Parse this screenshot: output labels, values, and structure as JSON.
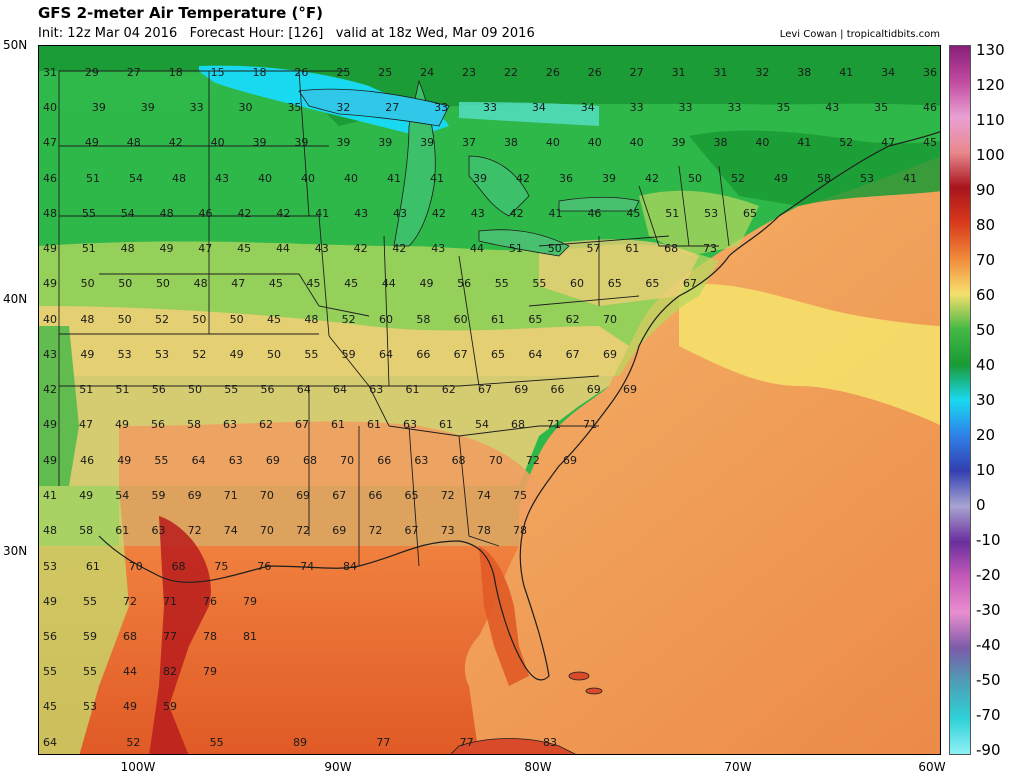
{
  "header": {
    "title": "GFS 2-meter Air Temperature (°F)",
    "init": "Init: 12z Mar 04 2016",
    "forecast_hour": "Forecast Hour: [126]",
    "valid": "valid at 18z Wed, Mar 09 2016",
    "credit": "Levi Cowan | tropicaltidbits.com"
  },
  "axes": {
    "lat_labels": [
      "50N",
      "40N",
      "30N"
    ],
    "lon_labels": [
      "100W",
      "90W",
      "80W",
      "70W",
      "60W"
    ]
  },
  "colorbar": {
    "unit": "°F",
    "ticks": [
      "130",
      "120",
      "110",
      "100",
      "90",
      "80",
      "70",
      "60",
      "50",
      "40",
      "30",
      "20",
      "10",
      "0",
      "-10",
      "-20",
      "-30",
      "-40",
      "-50",
      "-70",
      "-90"
    ],
    "colors": [
      "#8a1f7a",
      "#c04aa0",
      "#e9a0d4",
      "#e8898e",
      "#a8141c",
      "#d83a1c",
      "#f08a3a",
      "#f7e06e",
      "#45b845",
      "#1a9a35",
      "#19d9f0",
      "#2f80e8",
      "#3240b0",
      "#a9a3d3",
      "#6a2f9c",
      "#c45ab8",
      "#e98ed0",
      "#7d5aa8",
      "#4ca0b8",
      "#2fd0d8",
      "#8ff2f5"
    ]
  },
  "map_text": {
    "lake_superior": "",
    "notes": ""
  },
  "temperature_labels": [
    [
      "31",
      "29",
      "27",
      "18",
      "15",
      "18",
      "26",
      "25",
      "25",
      "24",
      "23",
      "22",
      "26",
      "26",
      "27",
      "31",
      "31",
      "32",
      "38",
      "41",
      "34",
      "36"
    ],
    [
      "40",
      "39",
      "39",
      "33",
      "30",
      "35",
      "32",
      "27",
      "33",
      "33",
      "34",
      "34",
      "33",
      "33",
      "33",
      "35",
      "43",
      "35",
      "46"
    ],
    [
      "47",
      "49",
      "48",
      "42",
      "40",
      "39",
      "39",
      "39",
      "39",
      "39",
      "37",
      "38",
      "40",
      "40",
      "40",
      "39",
      "38",
      "40",
      "41",
      "52",
      "47",
      "45"
    ],
    [
      "46",
      "51",
      "54",
      "48",
      "43",
      "40",
      "40",
      "40",
      "41",
      "41",
      "39",
      "42",
      "36",
      "39",
      "42",
      "50",
      "52",
      "49",
      "58",
      "53",
      "41"
    ],
    [
      "48",
      "55",
      "54",
      "48",
      "46",
      "42",
      "42",
      "41",
      "43",
      "43",
      "42",
      "43",
      "42",
      "41",
      "46",
      "45",
      "51",
      "53",
      "65"
    ],
    [
      "49",
      "51",
      "48",
      "49",
      "47",
      "45",
      "44",
      "43",
      "42",
      "42",
      "43",
      "44",
      "51",
      "50",
      "57",
      "61",
      "68",
      "73"
    ],
    [
      "49",
      "50",
      "50",
      "50",
      "48",
      "47",
      "45",
      "45",
      "45",
      "44",
      "49",
      "56",
      "55",
      "55",
      "60",
      "65",
      "65",
      "67"
    ],
    [
      "40",
      "48",
      "50",
      "52",
      "50",
      "50",
      "45",
      "48",
      "52",
      "60",
      "58",
      "60",
      "61",
      "65",
      "62",
      "70"
    ],
    [
      "43",
      "49",
      "53",
      "53",
      "52",
      "49",
      "50",
      "55",
      "59",
      "64",
      "66",
      "67",
      "65",
      "64",
      "67",
      "69"
    ],
    [
      "42",
      "51",
      "51",
      "56",
      "50",
      "55",
      "56",
      "64",
      "64",
      "63",
      "61",
      "62",
      "67",
      "69",
      "66",
      "69",
      "69"
    ],
    [
      "49",
      "47",
      "49",
      "56",
      "58",
      "63",
      "62",
      "67",
      "61",
      "61",
      "63",
      "61",
      "54",
      "68",
      "71",
      "71"
    ],
    [
      "49",
      "46",
      "49",
      "55",
      "64",
      "63",
      "69",
      "68",
      "70",
      "66",
      "63",
      "68",
      "70",
      "72",
      "69"
    ],
    [
      "41",
      "49",
      "54",
      "59",
      "69",
      "71",
      "70",
      "69",
      "67",
      "66",
      "65",
      "72",
      "74",
      "75"
    ],
    [
      "48",
      "58",
      "61",
      "63",
      "72",
      "74",
      "70",
      "72",
      "69",
      "72",
      "67",
      "73",
      "78",
      "78"
    ],
    [
      "53",
      "61",
      "70",
      "68",
      "75",
      "76",
      "74",
      "84"
    ],
    [
      "49",
      "55",
      "72",
      "71",
      "76",
      "79"
    ],
    [
      "56",
      "59",
      "68",
      "77",
      "78",
      "81"
    ],
    [
      "55",
      "55",
      "44",
      "82",
      "79"
    ],
    [
      "45",
      "53",
      "49",
      "59"
    ],
    [
      "64",
      "52",
      "55",
      "89",
      "77",
      "77",
      "83"
    ]
  ]
}
